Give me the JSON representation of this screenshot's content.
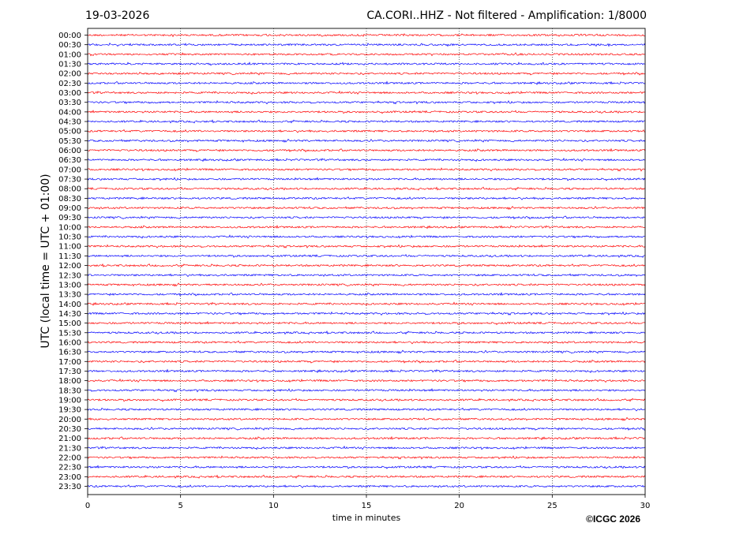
{
  "header": {
    "date": "19-03-2026",
    "title": "CA.CORI..HHZ - Not filtered - Amplification: 1/8000"
  },
  "footer": {
    "copyright": "©ICGC 2026"
  },
  "chart_data": {
    "type": "line",
    "title": "CA.CORI..HHZ - Not filtered - Amplification: 1/8000",
    "xlabel": "time in minutes",
    "ylabel": "UTC (local time = UTC + 01:00)",
    "xlim": [
      0,
      30
    ],
    "x_ticks": [
      0,
      5,
      10,
      15,
      20,
      25,
      30
    ],
    "grid": "vertical dotted lines at x ticks",
    "row_labels": [
      "00:00",
      "00:30",
      "01:00",
      "01:30",
      "02:00",
      "02:30",
      "03:00",
      "03:30",
      "04:00",
      "04:30",
      "05:00",
      "05:30",
      "06:00",
      "06:30",
      "07:00",
      "07:30",
      "08:00",
      "08:30",
      "09:00",
      "09:30",
      "10:00",
      "10:30",
      "11:00",
      "11:30",
      "12:00",
      "12:30",
      "13:00",
      "13:30",
      "14:00",
      "14:30",
      "15:00",
      "15:30",
      "16:00",
      "16:30",
      "17:00",
      "17:30",
      "18:00",
      "18:30",
      "19:00",
      "19:30",
      "20:00",
      "20:30",
      "21:00",
      "21:30",
      "22:00",
      "22:30",
      "23:00",
      "23:30"
    ],
    "trace_colors": [
      "#ff0000",
      "#0000ff"
    ]
  }
}
